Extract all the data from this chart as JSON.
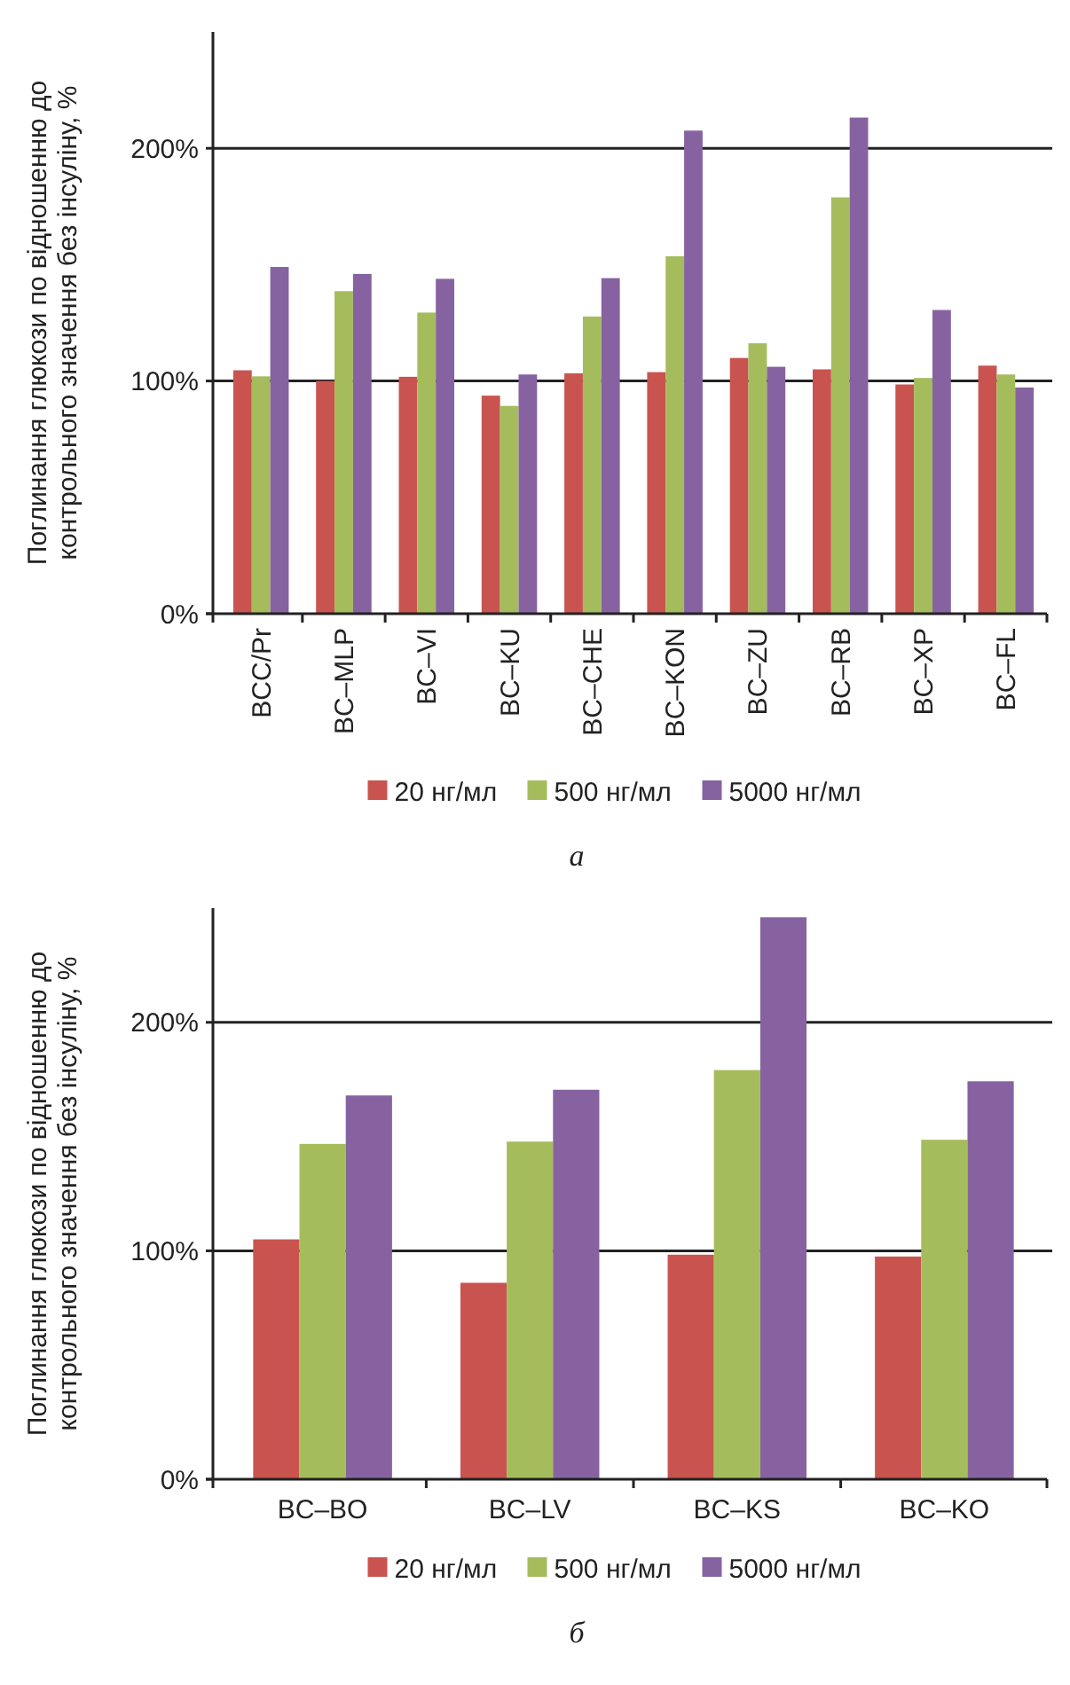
{
  "chart_data": [
    {
      "type": "bar",
      "ylabel": "Поглинання глюкози по відношенню до контрольного значення без інсуліну, %",
      "categories": [
        "BCC/Pr",
        "BC–MLP",
        "BC–VI",
        "BC–KU",
        "BC–CHE",
        "BC–KON",
        "BC–ZU",
        "BC–RB",
        "BC–XP",
        "BC–FL"
      ],
      "series": [
        {
          "name": "20 нг/мл",
          "color": "#c9544f",
          "values": [
            104.6,
            100,
            101.8,
            93.7,
            103.3,
            103.8,
            109.9,
            105,
            98.5,
            106.6
          ]
        },
        {
          "name": "500 нг/мл",
          "color": "#a5bc5c",
          "values": [
            102,
            138.6,
            129.4,
            89.3,
            127.7,
            153.6,
            116.2,
            178.9,
            101.3,
            102.8
          ]
        },
        {
          "name": "5000 нг/мл",
          "color": "#8663a0",
          "values": [
            149,
            146,
            143.9,
            102.8,
            144.2,
            207.6,
            106.1,
            213.2,
            130.5,
            97.2
          ]
        }
      ],
      "ylim": [
        0,
        250
      ],
      "yticks": [
        {
          "value": 0,
          "label": "0%"
        },
        {
          "value": 100,
          "label": "100%"
        },
        {
          "value": 200,
          "label": "200%"
        }
      ],
      "grid": "y",
      "legend": "bottom",
      "annotations": [
        "а"
      ]
    },
    {
      "type": "bar",
      "ylabel": "Поглинання глюкози по відношенню до контрольного значення без інсуліну, %",
      "categories": [
        "BC–BO",
        "BC–LV",
        "BC–KS",
        "BC–KO"
      ],
      "series": [
        {
          "name": "20 нг/мл",
          "color": "#c9544f",
          "values": [
            105,
            86,
            98.3,
            97.5
          ]
        },
        {
          "name": "500 нг/мл",
          "color": "#a5bc5c",
          "values": [
            146.8,
            147.8,
            179.1,
            148.6
          ]
        },
        {
          "name": "5000 нг/мл",
          "color": "#8663a0",
          "values": [
            168,
            170.5,
            246,
            174.2
          ]
        }
      ],
      "ylim": [
        0,
        250
      ],
      "yticks": [
        {
          "value": 0,
          "label": "0%"
        },
        {
          "value": 100,
          "label": "100%"
        },
        {
          "value": 200,
          "label": "200%"
        }
      ],
      "grid": "y",
      "legend": "bottom",
      "annotations": [
        "б"
      ]
    }
  ]
}
